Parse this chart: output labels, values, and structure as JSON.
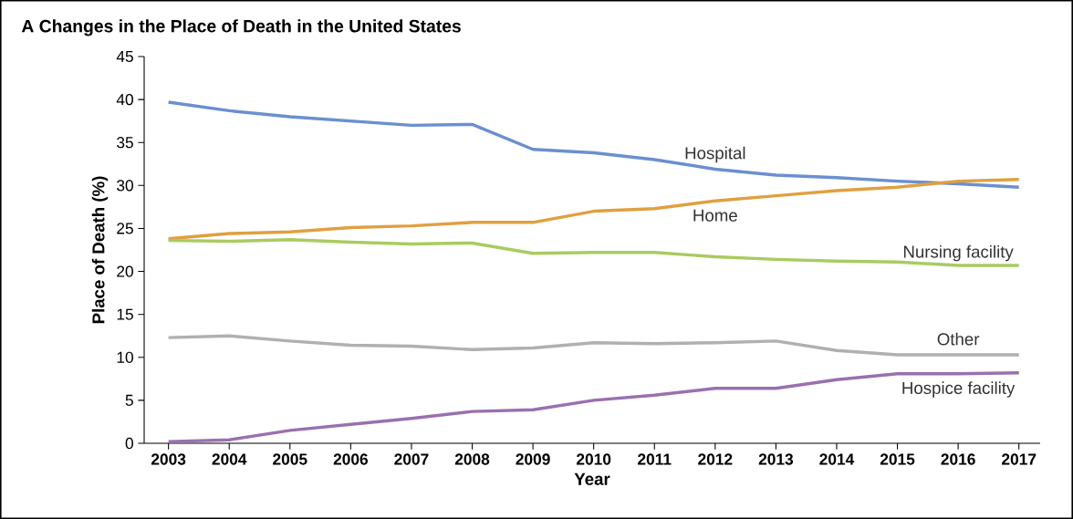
{
  "chart_data": {
    "type": "line",
    "title": "A  Changes in the Place of Death in the United States",
    "xlabel": "Year",
    "ylabel": "Place of Death (%)",
    "x": [
      2003,
      2004,
      2005,
      2006,
      2007,
      2008,
      2009,
      2010,
      2011,
      2012,
      2013,
      2014,
      2015,
      2016,
      2017
    ],
    "xlim": [
      2002.6,
      2017.35
    ],
    "xticks": [
      2003,
      2004,
      2005,
      2006,
      2007,
      2008,
      2009,
      2010,
      2011,
      2012,
      2013,
      2014,
      2015,
      2016,
      2017
    ],
    "ylim": [
      0,
      45
    ],
    "yticks": [
      0,
      5,
      10,
      15,
      20,
      25,
      30,
      35,
      40,
      45
    ],
    "grid": false,
    "legend": false,
    "marker": "none",
    "line_style": "solid",
    "series": [
      {
        "name": "Hospital",
        "color": "#6b8fd0",
        "values": [
          39.7,
          38.7,
          38.0,
          37.5,
          37.0,
          37.1,
          34.2,
          33.8,
          33.0,
          31.9,
          31.2,
          30.9,
          30.5,
          30.2,
          29.8
        ]
      },
      {
        "name": "Home",
        "color": "#e0a040",
        "values": [
          23.8,
          24.4,
          24.6,
          25.1,
          25.3,
          25.7,
          25.7,
          27.0,
          27.3,
          28.2,
          28.8,
          29.4,
          29.8,
          30.5,
          30.7
        ]
      },
      {
        "name": "Nursing facility",
        "color": "#a8cc60",
        "values": [
          23.6,
          23.5,
          23.7,
          23.4,
          23.2,
          23.3,
          22.1,
          22.2,
          22.2,
          21.7,
          21.4,
          21.2,
          21.1,
          20.7,
          20.7
        ]
      },
      {
        "name": "Other",
        "color": "#b0b0b0",
        "values": [
          12.3,
          12.5,
          11.9,
          11.4,
          11.3,
          10.9,
          11.1,
          11.7,
          11.6,
          11.7,
          11.9,
          10.8,
          10.3,
          10.3,
          10.3
        ]
      },
      {
        "name": "Hospice facility",
        "color": "#9a70b0",
        "values": [
          0.2,
          0.4,
          1.5,
          2.2,
          2.9,
          3.7,
          3.9,
          5.0,
          5.6,
          6.4,
          6.4,
          7.4,
          8.1,
          8.1,
          8.2
        ]
      }
    ]
  }
}
